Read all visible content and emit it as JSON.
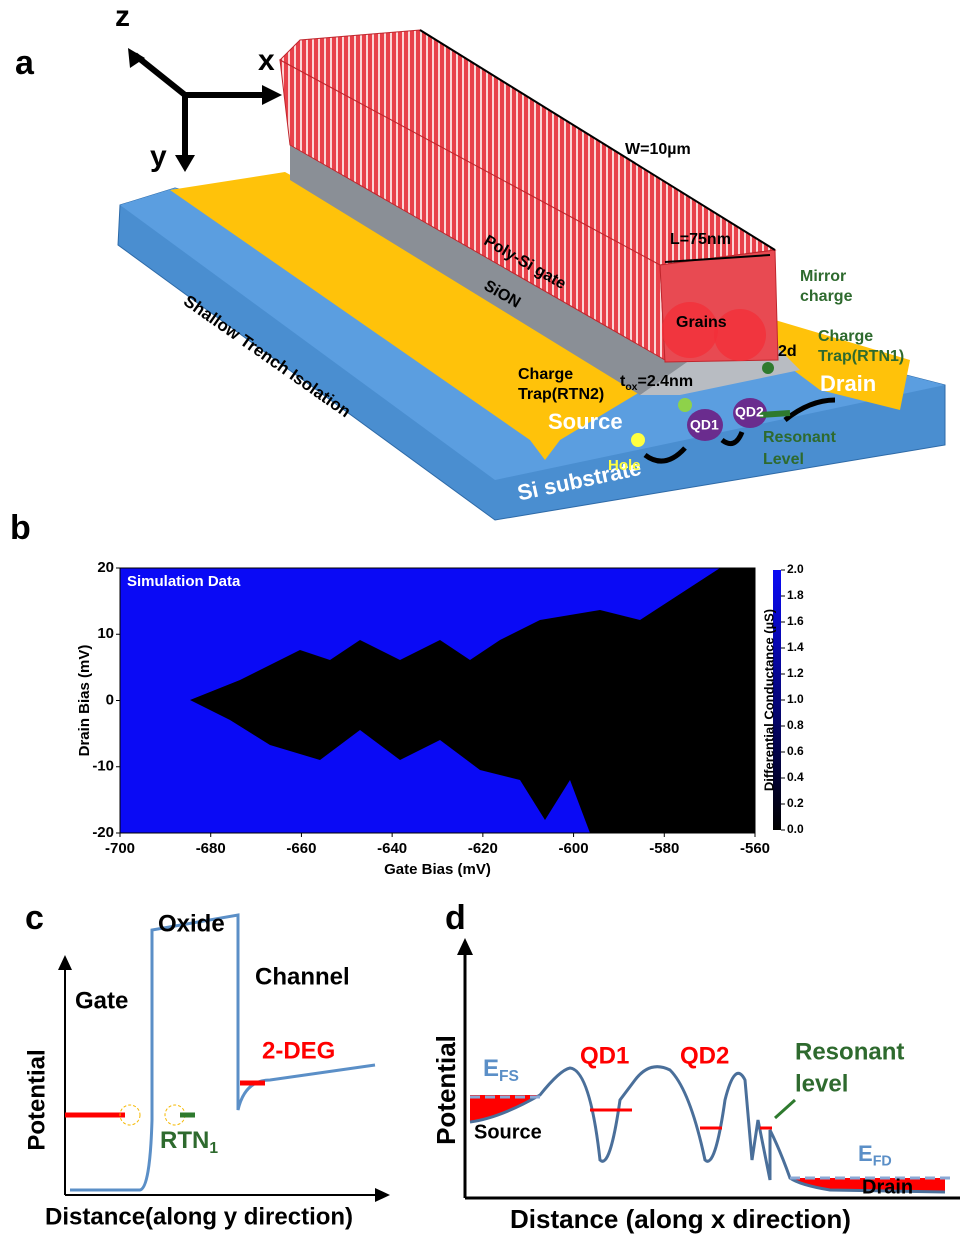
{
  "panel_labels": [
    "a",
    "b",
    "c",
    "d"
  ],
  "panel_a": {
    "axes": [
      "z",
      "x",
      "y"
    ],
    "width": "W=10µm",
    "length": "L=75nm",
    "gate": "Poly-Si gate",
    "oxide": "SiON",
    "isolation": "Shallow Trench Isolation",
    "substrate": "Si substrate",
    "source": "Source",
    "drain": "Drain",
    "grains": "Grains",
    "mirror": [
      "Mirror",
      "charge"
    ],
    "trap1": [
      "Charge",
      "Trap(RTN1)"
    ],
    "trap2": [
      "Charge",
      "Trap(RTN2)"
    ],
    "distance": "2d",
    "tox": [
      "t",
      "ox",
      "=2.4nm"
    ],
    "qd1": "QD1",
    "qd2": "QD2",
    "hole": "Hole",
    "resonant": [
      "Resonant",
      "Level"
    ]
  },
  "chart_data": {
    "type": "heatmap",
    "title": "Simulation Data",
    "x_label": "Gate Bias (mV)",
    "y_label": "Drain Bias (mV)",
    "xlim": [
      -700,
      -560
    ],
    "xticks": [
      -700,
      -680,
      -660,
      -640,
      -620,
      -600,
      -580,
      -560
    ],
    "ylim": [
      -20,
      20
    ],
    "yticks": [
      -20,
      -10,
      0,
      10,
      20
    ],
    "colorbar": {
      "label": "Differential Conductance (µS)",
      "lim": [
        0,
        2
      ],
      "colors": [
        "#000000",
        "#0a0af5"
      ],
      "ticks": [
        {
          "value": 0,
          "label": "0.0"
        },
        {
          "value": 0.2,
          "label": "0.2"
        },
        {
          "value": 0.4,
          "label": "0.4"
        },
        {
          "value": 0.6,
          "label": "0.6"
        },
        {
          "value": 0.8,
          "label": "0.8"
        },
        {
          "value": 1,
          "label": "1.0"
        },
        {
          "value": 1.2,
          "label": "1.2"
        },
        {
          "value": 1.4,
          "label": "1.4"
        },
        {
          "value": 1.6,
          "label": "1.6"
        },
        {
          "value": 1.8,
          "label": "1.8"
        },
        {
          "value": 2,
          "label": "2.0"
        }
      ]
    }
  },
  "panel_c": {
    "oxide": "Oxide",
    "gate": "Gate",
    "channel": "Channel",
    "deg": "2-DEG",
    "rtn": [
      "RTN",
      "1"
    ],
    "y_label": "Potential",
    "x_label": "Distance(along y direction)"
  },
  "panel_d": {
    "efs": [
      "E",
      "FS"
    ],
    "qd1": "QD1",
    "qd2": "QD2",
    "resonant": [
      "Resonant",
      "level"
    ],
    "source": "Source",
    "efd": [
      "E",
      "FD"
    ],
    "drain": "Drain",
    "y_label": "Potential",
    "x_label": "Distance (along x direction)"
  }
}
